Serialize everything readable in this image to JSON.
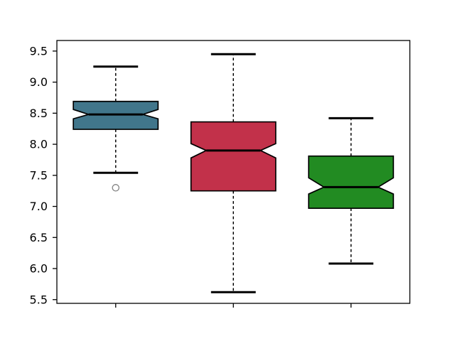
{
  "figure": {
    "background": "#ffffff",
    "frame_color": "#000000",
    "title": ""
  },
  "chart_data": {
    "type": "boxplot",
    "notched": true,
    "title": "",
    "xlabel": "",
    "ylabel": "",
    "grid": false,
    "legend": "none",
    "xlim": [
      0.5,
      3.5
    ],
    "ylim": [
      5.44,
      9.67
    ],
    "yticks": [
      {
        "value": 5.5,
        "label": "5.5"
      },
      {
        "value": 6.0,
        "label": "6.0"
      },
      {
        "value": 6.5,
        "label": "6.5"
      },
      {
        "value": 7.0,
        "label": "7.0"
      },
      {
        "value": 7.5,
        "label": "7.5"
      },
      {
        "value": 8.0,
        "label": "8.0"
      },
      {
        "value": 8.5,
        "label": "8.5"
      },
      {
        "value": 9.0,
        "label": "9.0"
      },
      {
        "value": 9.5,
        "label": "9.5"
      }
    ],
    "xticks": [
      {
        "value": 1,
        "label": ""
      },
      {
        "value": 2,
        "label": ""
      },
      {
        "value": 3,
        "label": ""
      }
    ],
    "box_width": 0.72,
    "cap_width": 0.38,
    "notch_inner_width": 0.46,
    "edge_color": "#000000",
    "median_color": "#000000",
    "whisker_style": "dashed",
    "flier_edge_color": "#808080",
    "groups": [
      {
        "name": "box-1",
        "position": 1,
        "fill": "#41768B",
        "whisker_low": 7.54,
        "q1": 8.24,
        "median": 8.48,
        "q3": 8.69,
        "whisker_high": 9.25,
        "notch_low": 8.41,
        "notch_high": 8.56,
        "fliers": [
          7.3
        ]
      },
      {
        "name": "box-2",
        "position": 2,
        "fill": "#C2314A",
        "whisker_low": 5.62,
        "q1": 7.25,
        "median": 7.9,
        "q3": 8.36,
        "whisker_high": 9.45,
        "notch_low": 7.78,
        "notch_high": 8.01,
        "fliers": []
      },
      {
        "name": "box-3",
        "position": 3,
        "fill": "#228B22",
        "whisker_low": 6.08,
        "q1": 6.97,
        "median": 7.31,
        "q3": 7.81,
        "whisker_high": 8.42,
        "notch_low": 7.2,
        "notch_high": 7.46,
        "fliers": []
      }
    ]
  }
}
